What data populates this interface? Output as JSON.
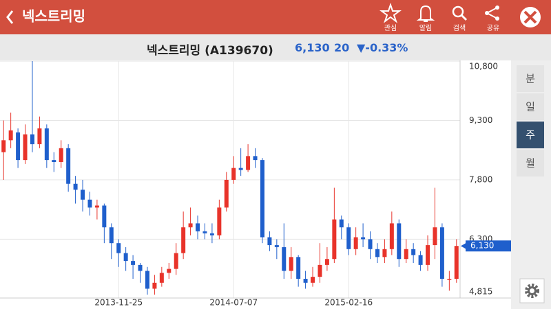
{
  "header": {
    "title": "넥스트리밍",
    "actions": [
      "관심",
      "알림",
      "검색",
      "공유"
    ]
  },
  "stock": {
    "name": "넥스트리밍 (A139670)",
    "price": "6,130",
    "change": "20",
    "change_pct": "▼-0.33%"
  },
  "periods": [
    "분",
    "일",
    "주",
    "월"
  ],
  "selected_period": 2,
  "chart_data": {
    "type": "candlestick",
    "categories": [
      null,
      null,
      null,
      null,
      null,
      null,
      null,
      null,
      null,
      null,
      null,
      null,
      null,
      null,
      null,
      null,
      "2013-11-25",
      null,
      null,
      null,
      null,
      null,
      null,
      null,
      null,
      null,
      null,
      null,
      null,
      null,
      null,
      null,
      "2014-07-07",
      null,
      null,
      null,
      null,
      null,
      null,
      null,
      null,
      null,
      null,
      null,
      null,
      null,
      null,
      null,
      "2015-02-16",
      null,
      null,
      null,
      null,
      null,
      null,
      null,
      null,
      null,
      null,
      null,
      null,
      null,
      null,
      null
    ],
    "open": [
      8500,
      8800,
      9000,
      8300,
      8950,
      8700,
      9100,
      8300,
      8250,
      8600,
      7700,
      7550,
      7300,
      7100,
      7150,
      6600,
      6200,
      5950,
      5750,
      5650,
      5500,
      5050,
      5200,
      5450,
      5550,
      5950,
      6600,
      6700,
      6500,
      6450,
      6400,
      7100,
      7800,
      8100,
      8050,
      8400,
      8300,
      6350,
      6150,
      6100,
      5500,
      5850,
      5300,
      5200,
      5350,
      5650,
      5800,
      6800,
      6600,
      6050,
      6350,
      6300,
      6050,
      5850,
      6050,
      6700,
      5800,
      6050,
      5900,
      5650,
      6150,
      6600,
      5300,
      5300
    ],
    "high": [
      9300,
      9500,
      9100,
      9200,
      10800,
      9400,
      9200,
      8500,
      8800,
      8700,
      7900,
      7800,
      7500,
      7300,
      7200,
      6700,
      6300,
      6100,
      5900,
      5700,
      5600,
      5400,
      5600,
      5700,
      6200,
      7000,
      7100,
      6900,
      6700,
      6700,
      7300,
      8000,
      8400,
      8600,
      8700,
      8600,
      8350,
      6500,
      6300,
      6700,
      6100,
      5900,
      5500,
      5600,
      6200,
      6100,
      7600,
      6900,
      6700,
      6600,
      6700,
      6500,
      6200,
      6300,
      7000,
      6800,
      6300,
      6200,
      6000,
      6400,
      7600,
      6700,
      5500,
      6300
    ],
    "low": [
      7800,
      8600,
      8100,
      8200,
      8500,
      8600,
      8100,
      8000,
      8100,
      7500,
      7200,
      7000,
      6900,
      6800,
      6200,
      5800,
      5600,
      5500,
      5300,
      5200,
      4900,
      4900,
      5100,
      5300,
      5400,
      5800,
      6400,
      6300,
      6300,
      6200,
      6300,
      7000,
      7700,
      7900,
      8000,
      8100,
      6200,
      6000,
      5800,
      5300,
      5300,
      5100,
      5050,
      5100,
      5200,
      5500,
      5700,
      6300,
      5900,
      5900,
      6100,
      5800,
      5700,
      5700,
      5900,
      5600,
      5700,
      5700,
      5500,
      5500,
      5800,
      5100,
      5000,
      5200
    ],
    "close": [
      8800,
      9050,
      8300,
      8950,
      8700,
      9100,
      8300,
      8250,
      8600,
      7700,
      7550,
      7300,
      7100,
      7150,
      6600,
      6200,
      5950,
      5750,
      5650,
      5500,
      5050,
      5200,
      5450,
      5550,
      5950,
      6600,
      6700,
      6500,
      6450,
      6400,
      7100,
      7800,
      8100,
      8050,
      8400,
      8300,
      6350,
      6150,
      6100,
      5500,
      5850,
      5300,
      5200,
      5350,
      5650,
      5800,
      6800,
      6600,
      6050,
      6350,
      6300,
      6050,
      5850,
      6050,
      6700,
      5800,
      6050,
      5900,
      5650,
      6150,
      6600,
      5300,
      5300,
      6130
    ],
    "up_color": "#e8332a",
    "down_color": "#1f5fcc",
    "ylim": [
      4815,
      10800
    ],
    "yticks": [
      {
        "value": 4815,
        "label": "4,815"
      },
      {
        "value": 6300,
        "label": "6,300"
      },
      {
        "value": 7800,
        "label": "7,800"
      },
      {
        "value": 9300,
        "label": "9,300"
      },
      {
        "value": 10800,
        "label": "10,800"
      }
    ],
    "current": {
      "value": 6130,
      "label": "6,130"
    },
    "grid": true
  }
}
